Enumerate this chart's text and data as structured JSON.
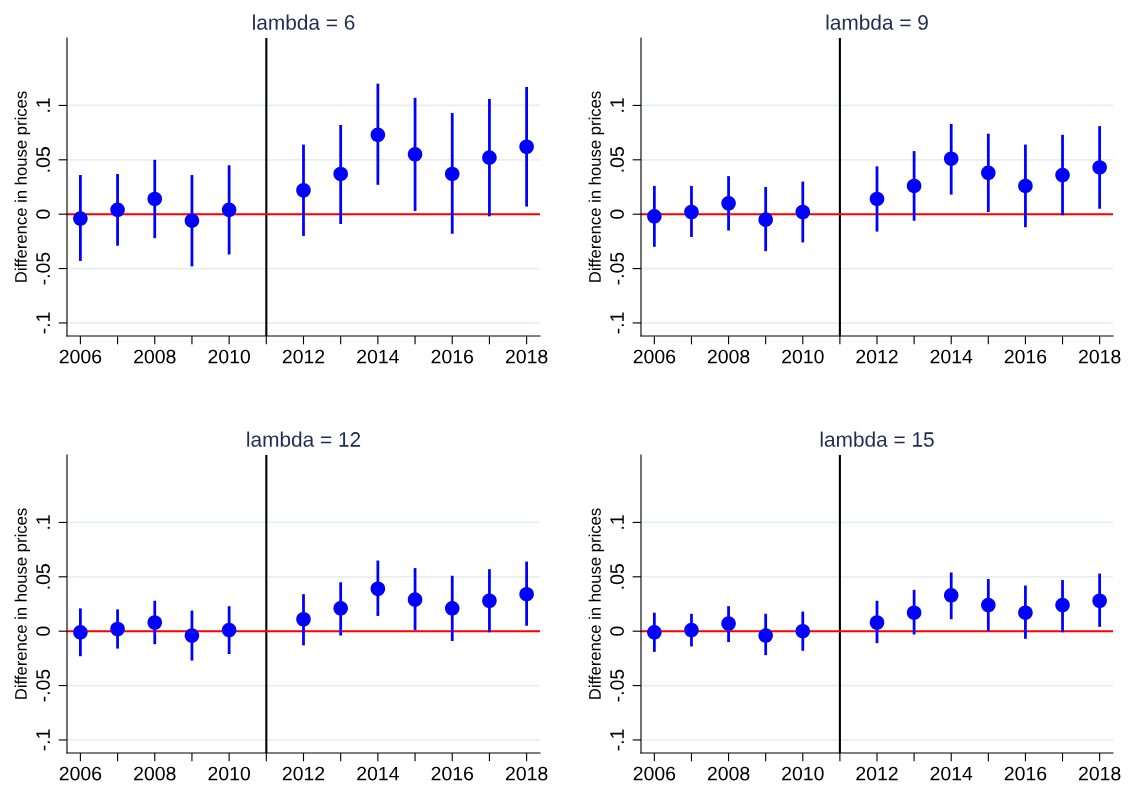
{
  "chart_data": [
    {
      "type": "scatter",
      "title": "lambda = 6",
      "ylabel": "Difference in house prices",
      "x": [
        2006,
        2007,
        2008,
        2009,
        2010,
        2012,
        2013,
        2014,
        2015,
        2016,
        2017,
        2018
      ],
      "marker": "circle",
      "grid": "y",
      "xlim": [
        2005.64,
        2018.36
      ],
      "ylim": [
        -0.112,
        0.162
      ],
      "xticks": [
        2006,
        {
          "value": 2007,
          "label": null
        },
        2008,
        {
          "value": 2009,
          "label": null
        },
        2010,
        {
          "value": 2011,
          "label": null
        },
        2012,
        {
          "value": 2013,
          "label": null
        },
        2014,
        {
          "value": 2015,
          "label": null
        },
        2016,
        {
          "value": 2017,
          "label": null
        },
        2018
      ],
      "yticks": [
        {
          "value": -0.1,
          "label": "-.1"
        },
        {
          "value": -0.05,
          "label": "-.05"
        },
        0,
        {
          "value": 0.05,
          "label": ".05"
        },
        {
          "value": 0.1,
          "label": ".1"
        }
      ],
      "ref_lines": [
        {
          "axis": "x",
          "value": 2011,
          "color": "#000000"
        },
        {
          "axis": "y",
          "value": 0,
          "color": "#ff0000"
        }
      ],
      "series": [
        {
          "color": "#0000ff",
          "values": [
            -0.004,
            0.004,
            0.014,
            -0.006,
            0.004,
            0.022,
            0.037,
            0.073,
            0.055,
            0.037,
            0.052,
            0.062
          ],
          "errors": [
            [
              -0.043,
              0.036
            ],
            [
              -0.029,
              0.037
            ],
            [
              -0.022,
              0.05
            ],
            [
              -0.048,
              0.036
            ],
            [
              -0.037,
              0.045
            ],
            [
              -0.02,
              0.064
            ],
            [
              -0.009,
              0.082
            ],
            [
              0.027,
              0.12
            ],
            [
              0.003,
              0.107
            ],
            [
              -0.018,
              0.093
            ],
            [
              -0.002,
              0.106
            ],
            [
              0.007,
              0.117
            ]
          ]
        }
      ]
    },
    {
      "type": "scatter",
      "title": "lambda = 9",
      "ylabel": "Difference in house prices",
      "x": [
        2006,
        2007,
        2008,
        2009,
        2010,
        2012,
        2013,
        2014,
        2015,
        2016,
        2017,
        2018
      ],
      "marker": "circle",
      "grid": "y",
      "xlim": [
        2005.64,
        2018.36
      ],
      "ylim": [
        -0.112,
        0.162
      ],
      "xticks": [
        2006,
        {
          "value": 2007,
          "label": null
        },
        2008,
        {
          "value": 2009,
          "label": null
        },
        2010,
        {
          "value": 2011,
          "label": null
        },
        2012,
        {
          "value": 2013,
          "label": null
        },
        2014,
        {
          "value": 2015,
          "label": null
        },
        2016,
        {
          "value": 2017,
          "label": null
        },
        2018
      ],
      "yticks": [
        {
          "value": -0.1,
          "label": "-.1"
        },
        {
          "value": -0.05,
          "label": "-.05"
        },
        0,
        {
          "value": 0.05,
          "label": ".05"
        },
        {
          "value": 0.1,
          "label": ".1"
        }
      ],
      "ref_lines": [
        {
          "axis": "x",
          "value": 2011,
          "color": "#000000"
        },
        {
          "axis": "y",
          "value": 0,
          "color": "#ff0000"
        }
      ],
      "series": [
        {
          "color": "#0000ff",
          "values": [
            -0.002,
            0.002,
            0.01,
            -0.005,
            0.002,
            0.014,
            0.026,
            0.051,
            0.038,
            0.026,
            0.036,
            0.043
          ],
          "errors": [
            [
              -0.03,
              0.026
            ],
            [
              -0.021,
              0.026
            ],
            [
              -0.015,
              0.035
            ],
            [
              -0.034,
              0.025
            ],
            [
              -0.026,
              0.03
            ],
            [
              -0.016,
              0.044
            ],
            [
              -0.006,
              0.058
            ],
            [
              0.018,
              0.083
            ],
            [
              0.002,
              0.074
            ],
            [
              -0.012,
              0.064
            ],
            [
              -0.001,
              0.073
            ],
            [
              0.005,
              0.081
            ]
          ]
        }
      ]
    },
    {
      "type": "scatter",
      "title": "lambda = 12",
      "ylabel": "Difference in house prices",
      "x": [
        2006,
        2007,
        2008,
        2009,
        2010,
        2012,
        2013,
        2014,
        2015,
        2016,
        2017,
        2018
      ],
      "marker": "circle",
      "grid": "y",
      "xlim": [
        2005.64,
        2018.36
      ],
      "ylim": [
        -0.112,
        0.162
      ],
      "xticks": [
        2006,
        {
          "value": 2007,
          "label": null
        },
        2008,
        {
          "value": 2009,
          "label": null
        },
        2010,
        {
          "value": 2011,
          "label": null
        },
        2012,
        {
          "value": 2013,
          "label": null
        },
        2014,
        {
          "value": 2015,
          "label": null
        },
        2016,
        {
          "value": 2017,
          "label": null
        },
        2018
      ],
      "yticks": [
        {
          "value": -0.1,
          "label": "-.1"
        },
        {
          "value": -0.05,
          "label": "-.05"
        },
        0,
        {
          "value": 0.05,
          "label": ".05"
        },
        {
          "value": 0.1,
          "label": ".1"
        }
      ],
      "ref_lines": [
        {
          "axis": "x",
          "value": 2011,
          "color": "#000000"
        },
        {
          "axis": "y",
          "value": 0,
          "color": "#ff0000"
        }
      ],
      "series": [
        {
          "color": "#0000ff",
          "values": [
            -0.001,
            0.002,
            0.008,
            -0.004,
            0.001,
            0.011,
            0.021,
            0.039,
            0.029,
            0.021,
            0.028,
            0.034
          ],
          "errors": [
            [
              -0.023,
              0.021
            ],
            [
              -0.016,
              0.02
            ],
            [
              -0.012,
              0.028
            ],
            [
              -0.027,
              0.019
            ],
            [
              -0.021,
              0.023
            ],
            [
              -0.013,
              0.034
            ],
            [
              -0.004,
              0.045
            ],
            [
              0.014,
              0.065
            ],
            [
              0.001,
              0.058
            ],
            [
              -0.009,
              0.051
            ],
            [
              -0.001,
              0.057
            ],
            [
              0.005,
              0.064
            ]
          ]
        }
      ]
    },
    {
      "type": "scatter",
      "title": "lambda = 15",
      "ylabel": "Difference in house prices",
      "x": [
        2006,
        2007,
        2008,
        2009,
        2010,
        2012,
        2013,
        2014,
        2015,
        2016,
        2017,
        2018
      ],
      "marker": "circle",
      "grid": "y",
      "xlim": [
        2005.64,
        2018.36
      ],
      "ylim": [
        -0.112,
        0.162
      ],
      "xticks": [
        2006,
        {
          "value": 2007,
          "label": null
        },
        2008,
        {
          "value": 2009,
          "label": null
        },
        2010,
        {
          "value": 2011,
          "label": null
        },
        2012,
        {
          "value": 2013,
          "label": null
        },
        2014,
        {
          "value": 2015,
          "label": null
        },
        2016,
        {
          "value": 2017,
          "label": null
        },
        2018
      ],
      "yticks": [
        {
          "value": -0.1,
          "label": "-.1"
        },
        {
          "value": -0.05,
          "label": "-.05"
        },
        0,
        {
          "value": 0.05,
          "label": ".05"
        },
        {
          "value": 0.1,
          "label": ".1"
        }
      ],
      "ref_lines": [
        {
          "axis": "x",
          "value": 2011,
          "color": "#000000"
        },
        {
          "axis": "y",
          "value": 0,
          "color": "#ff0000"
        }
      ],
      "series": [
        {
          "color": "#0000ff",
          "values": [
            -0.001,
            0.001,
            0.007,
            -0.004,
            0.0,
            0.008,
            0.017,
            0.033,
            0.024,
            0.017,
            0.024,
            0.028
          ],
          "errors": [
            [
              -0.019,
              0.017
            ],
            [
              -0.014,
              0.016
            ],
            [
              -0.01,
              0.023
            ],
            [
              -0.022,
              0.016
            ],
            [
              -0.018,
              0.018
            ],
            [
              -0.011,
              0.028
            ],
            [
              -0.003,
              0.038
            ],
            [
              0.011,
              0.054
            ],
            [
              0.0,
              0.048
            ],
            [
              -0.007,
              0.042
            ],
            [
              -0.001,
              0.047
            ],
            [
              0.004,
              0.053
            ]
          ]
        }
      ]
    }
  ]
}
